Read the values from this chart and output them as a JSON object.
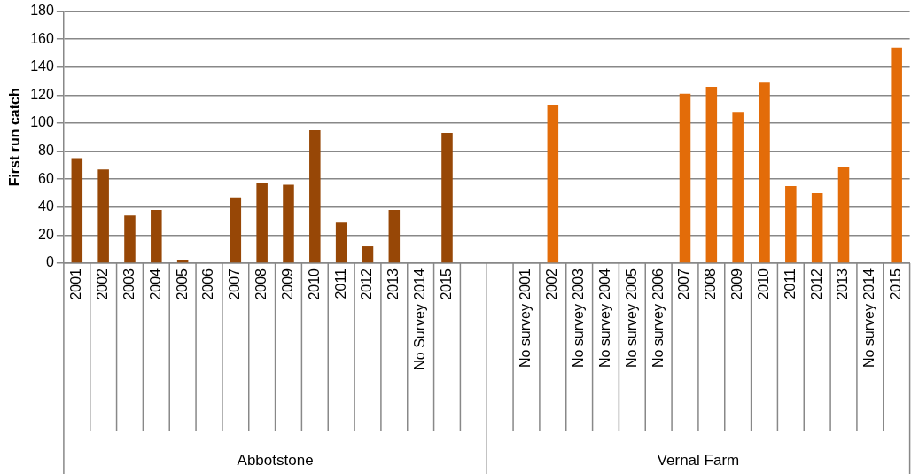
{
  "chart_data": {
    "type": "bar",
    "ylabel": "First run catch",
    "categories": [
      "2001",
      "2002",
      "2003",
      "2004",
      "2005",
      "2006",
      "2007",
      "2008",
      "2009",
      "2010",
      "2011",
      "2012",
      "2013",
      "No Survey 2014",
      "2015",
      null,
      null,
      "No survey 2001",
      "2002",
      "No survey 2003",
      "No survey 2004",
      "No survey 2005",
      "No survey 2006",
      "2007",
      "2008",
      "2009",
      "2010",
      "2011",
      "2012",
      "2013",
      "No survey 2014",
      "2015"
    ],
    "values": [
      75,
      67,
      34,
      38,
      2,
      null,
      47,
      57,
      56,
      95,
      29,
      12,
      38,
      null,
      93,
      null,
      null,
      null,
      113,
      null,
      null,
      null,
      null,
      121,
      126,
      108,
      129,
      55,
      50,
      69,
      null,
      154
    ],
    "colors": [
      "#974706",
      "#974706",
      "#974706",
      "#974706",
      "#974706",
      "#974706",
      "#974706",
      "#974706",
      "#974706",
      "#974706",
      "#974706",
      "#974706",
      "#974706",
      "#974706",
      "#974706",
      "#974706",
      "#e36c09",
      "#e36c09",
      "#e36c09",
      "#e36c09",
      "#e36c09",
      "#e36c09",
      "#e36c09",
      "#e36c09",
      "#e36c09",
      "#e36c09",
      "#e36c09",
      "#e36c09",
      "#e36c09",
      "#e36c09",
      "#e36c09",
      "#e36c09"
    ],
    "annotations": [
      "Abbotstone",
      "Vernal Farm"
    ],
    "ylim": [
      0,
      180
    ],
    "yticks": [
      0,
      20,
      40,
      60,
      80,
      100,
      120,
      140,
      160,
      180
    ],
    "grid": "y",
    "legend": false
  }
}
